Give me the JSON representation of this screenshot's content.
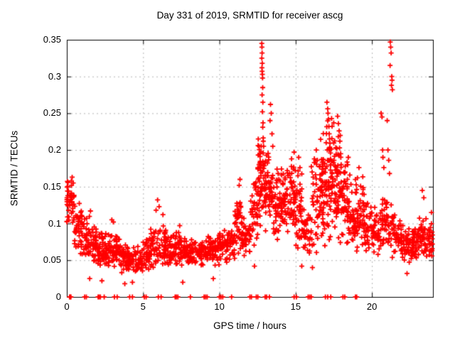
{
  "chart_data": {
    "type": "scatter",
    "title": "Day 331 of 2019, SRMTID for receiver ascg",
    "xlabel": "GPS time / hours",
    "ylabel": "SRMTID / TECUs",
    "xlim": [
      0,
      24
    ],
    "ylim": [
      0,
      0.35
    ],
    "xticks": [
      {
        "v": 0,
        "label": "0"
      },
      {
        "v": 5,
        "label": "5"
      },
      {
        "v": 10,
        "label": "10"
      },
      {
        "v": 15,
        "label": "15"
      },
      {
        "v": 20,
        "label": "20"
      }
    ],
    "yticks": [
      {
        "v": 0,
        "label": "0"
      },
      {
        "v": 0.05,
        "label": "0.05"
      },
      {
        "v": 0.1,
        "label": "0.1"
      },
      {
        "v": 0.15,
        "label": "0.15"
      },
      {
        "v": 0.2,
        "label": "0.2"
      },
      {
        "v": 0.25,
        "label": "0.25"
      },
      {
        "v": 0.3,
        "label": "0.3"
      },
      {
        "v": 0.35,
        "label": "0.35"
      }
    ],
    "grid": true,
    "legend": "none",
    "marker": {
      "shape": "plus",
      "color": "#ff0000",
      "size": 7
    },
    "seed": 331,
    "density_bands": [
      [
        0.0,
        0.5,
        0.095,
        0.165,
        45
      ],
      [
        0.5,
        1.0,
        0.055,
        0.135,
        40
      ],
      [
        1.0,
        1.5,
        0.048,
        0.115,
        36
      ],
      [
        1.5,
        2.0,
        0.04,
        0.105,
        36
      ],
      [
        2.0,
        2.5,
        0.035,
        0.095,
        36
      ],
      [
        2.5,
        3.0,
        0.035,
        0.09,
        36
      ],
      [
        3.0,
        3.5,
        0.032,
        0.09,
        36
      ],
      [
        3.5,
        4.0,
        0.03,
        0.078,
        36
      ],
      [
        4.0,
        4.5,
        0.028,
        0.068,
        36
      ],
      [
        4.5,
        5.0,
        0.03,
        0.072,
        36
      ],
      [
        5.0,
        5.5,
        0.035,
        0.082,
        36
      ],
      [
        5.5,
        6.0,
        0.038,
        0.1,
        36
      ],
      [
        6.0,
        6.5,
        0.04,
        0.105,
        38
      ],
      [
        6.5,
        7.0,
        0.04,
        0.088,
        36
      ],
      [
        7.0,
        7.5,
        0.04,
        0.092,
        36
      ],
      [
        7.5,
        8.0,
        0.036,
        0.082,
        34
      ],
      [
        8.0,
        8.5,
        0.04,
        0.082,
        34
      ],
      [
        8.5,
        9.0,
        0.04,
        0.08,
        34
      ],
      [
        9.0,
        9.5,
        0.04,
        0.086,
        34
      ],
      [
        9.5,
        10.0,
        0.042,
        0.088,
        34
      ],
      [
        10.0,
        10.5,
        0.045,
        0.092,
        36
      ],
      [
        10.5,
        11.0,
        0.05,
        0.098,
        36
      ],
      [
        11.0,
        11.5,
        0.055,
        0.135,
        42
      ],
      [
        11.5,
        12.0,
        0.05,
        0.112,
        36
      ],
      [
        12.0,
        12.5,
        0.06,
        0.165,
        38
      ],
      [
        12.5,
        13.0,
        0.08,
        0.23,
        50
      ],
      [
        13.0,
        13.5,
        0.08,
        0.21,
        50
      ],
      [
        13.5,
        14.0,
        0.07,
        0.175,
        42
      ],
      [
        14.0,
        14.5,
        0.08,
        0.18,
        45
      ],
      [
        14.5,
        15.0,
        0.082,
        0.2,
        45
      ],
      [
        15.0,
        15.5,
        0.042,
        0.19,
        38
      ],
      [
        15.5,
        16.0,
        0.05,
        0.125,
        32
      ],
      [
        16.0,
        16.5,
        0.05,
        0.2,
        38
      ],
      [
        16.5,
        17.0,
        0.062,
        0.24,
        55
      ],
      [
        17.0,
        17.5,
        0.07,
        0.26,
        60
      ],
      [
        17.5,
        18.0,
        0.07,
        0.24,
        60
      ],
      [
        18.0,
        18.5,
        0.06,
        0.19,
        50
      ],
      [
        18.5,
        19.0,
        0.06,
        0.165,
        45
      ],
      [
        19.0,
        19.5,
        0.058,
        0.17,
        40
      ],
      [
        19.5,
        20.0,
        0.058,
        0.135,
        36
      ],
      [
        20.0,
        20.5,
        0.055,
        0.125,
        36
      ],
      [
        20.5,
        21.0,
        0.06,
        0.15,
        36
      ],
      [
        21.0,
        21.5,
        0.05,
        0.13,
        32
      ],
      [
        21.5,
        22.0,
        0.048,
        0.11,
        34
      ],
      [
        22.0,
        22.5,
        0.04,
        0.1,
        34
      ],
      [
        22.5,
        23.0,
        0.045,
        0.1,
        42
      ],
      [
        23.0,
        23.5,
        0.05,
        0.112,
        42
      ],
      [
        23.5,
        24.0,
        0.05,
        0.112,
        32
      ]
    ],
    "outlier_points": [
      [
        0.3,
        0.158
      ],
      [
        0.35,
        0.163
      ],
      [
        0.42,
        0.155
      ],
      [
        1.55,
        0.117
      ],
      [
        1.5,
        0.025
      ],
      [
        2.3,
        0.022
      ],
      [
        2.95,
        0.105
      ],
      [
        3.05,
        0.102
      ],
      [
        3.8,
        0.018
      ],
      [
        4.3,
        0.02
      ],
      [
        5.85,
        0.118
      ],
      [
        5.95,
        0.132
      ],
      [
        6.05,
        0.123
      ],
      [
        6.3,
        0.112
      ],
      [
        7.4,
        0.097
      ],
      [
        7.6,
        0.02
      ],
      [
        9.6,
        0.025
      ],
      [
        11.3,
        0.152
      ],
      [
        11.35,
        0.16
      ],
      [
        12.3,
        0.042
      ],
      [
        12.55,
        0.215
      ],
      [
        12.6,
        0.205
      ],
      [
        12.65,
        0.195
      ],
      [
        12.78,
        0.345
      ],
      [
        12.79,
        0.34
      ],
      [
        12.8,
        0.332
      ],
      [
        12.78,
        0.325
      ],
      [
        12.81,
        0.318
      ],
      [
        12.79,
        0.312
      ],
      [
        12.8,
        0.307
      ],
      [
        12.82,
        0.303
      ],
      [
        12.83,
        0.298
      ],
      [
        12.84,
        0.285
      ],
      [
        12.8,
        0.275
      ],
      [
        12.85,
        0.265
      ],
      [
        12.82,
        0.252
      ],
      [
        12.86,
        0.237
      ],
      [
        12.84,
        0.231
      ],
      [
        12.88,
        0.212
      ],
      [
        12.9,
        0.205
      ],
      [
        12.87,
        0.196
      ],
      [
        13.35,
        0.262
      ],
      [
        13.4,
        0.25
      ],
      [
        13.32,
        0.24
      ],
      [
        13.45,
        0.222
      ],
      [
        13.5,
        0.205
      ],
      [
        13.85,
        0.168
      ],
      [
        13.9,
        0.16
      ],
      [
        14.3,
        0.162
      ],
      [
        14.45,
        0.172
      ],
      [
        14.5,
        0.165
      ],
      [
        14.9,
        0.197
      ],
      [
        15.2,
        0.19
      ],
      [
        15.28,
        0.176
      ],
      [
        15.15,
        0.165
      ],
      [
        15.4,
        0.042
      ],
      [
        16.1,
        0.04
      ],
      [
        16.35,
        0.2
      ],
      [
        16.42,
        0.186
      ],
      [
        17.05,
        0.265
      ],
      [
        17.1,
        0.256
      ],
      [
        17.12,
        0.25
      ],
      [
        17.15,
        0.242
      ],
      [
        17.18,
        0.232
      ],
      [
        17.2,
        0.222
      ],
      [
        17.22,
        0.215
      ],
      [
        17.0,
        0.21
      ],
      [
        17.25,
        0.202
      ],
      [
        17.28,
        0.196
      ],
      [
        17.75,
        0.246
      ],
      [
        17.8,
        0.236
      ],
      [
        17.85,
        0.226
      ],
      [
        17.9,
        0.212
      ],
      [
        17.7,
        0.202
      ],
      [
        17.95,
        0.195
      ],
      [
        18.45,
        0.19
      ],
      [
        18.55,
        0.166
      ],
      [
        19.05,
        0.162
      ],
      [
        19.15,
        0.176
      ],
      [
        20.6,
        0.25
      ],
      [
        20.66,
        0.245
      ],
      [
        21.0,
        0.24
      ],
      [
        20.7,
        0.2
      ],
      [
        20.72,
        0.19
      ],
      [
        21.05,
        0.2
      ],
      [
        21.1,
        0.186
      ],
      [
        20.78,
        0.176
      ],
      [
        21.15,
        0.168
      ],
      [
        21.2,
        0.347
      ],
      [
        21.23,
        0.34
      ],
      [
        21.26,
        0.332
      ],
      [
        21.19,
        0.315
      ],
      [
        21.3,
        0.3
      ],
      [
        21.32,
        0.295
      ],
      [
        21.28,
        0.288
      ],
      [
        21.34,
        0.282
      ],
      [
        22.3,
        0.032
      ],
      [
        23.3,
        0.145
      ],
      [
        23.4,
        0.135
      ],
      [
        23.9,
        0.115
      ]
    ],
    "zero_marker_x": [
      0.18,
      0.22,
      0.27,
      1.17,
      1.28,
      2.05,
      2.12,
      2.2,
      2.45,
      3.12,
      3.3,
      4.12,
      4.3,
      5.08,
      5.2,
      6.0,
      6.18,
      7.1,
      7.18,
      7.28,
      8.1,
      9.0,
      9.1,
      9.2,
      10.0,
      10.1,
      10.22,
      10.8,
      12.0,
      12.1,
      12.42,
      12.52,
      13.0,
      13.1,
      13.28,
      14.9,
      15.05,
      15.82,
      15.92,
      16.02,
      16.95,
      17.1,
      17.3,
      18.1,
      18.22,
      18.92,
      19.0
    ]
  },
  "colors": {
    "marker": "#ff0000",
    "grid": "#b4b4b4",
    "axis": "#000000",
    "background": "#ffffff",
    "text": "#000000"
  }
}
